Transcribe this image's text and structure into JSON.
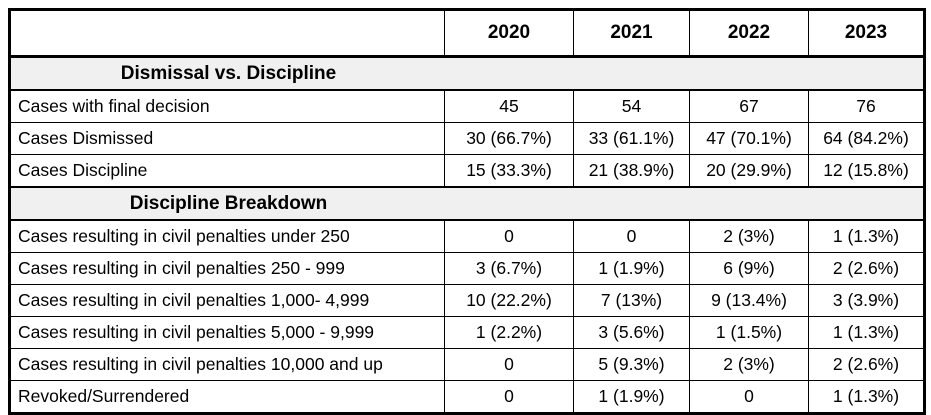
{
  "chart_data": {
    "type": "table",
    "column_headers": [
      "",
      "2020",
      "2021",
      "2022",
      "2023"
    ],
    "sections": [
      {
        "title": "Dismissal vs. Discipline",
        "rows": [
          {
            "label": "Cases with final decision",
            "values": [
              "45",
              "54",
              "67",
              "76"
            ]
          },
          {
            "label": "Cases Dismissed",
            "values": [
              "30 (66.7%)",
              "33 (61.1%)",
              "47 (70.1%)",
              "64 (84.2%)"
            ]
          },
          {
            "label": "Cases Discipline",
            "values": [
              "15 (33.3%)",
              "21 (38.9%)",
              "20 (29.9%)",
              "12 (15.8%)"
            ]
          }
        ]
      },
      {
        "title": "Discipline Breakdown",
        "rows": [
          {
            "label": "Cases resulting in civil penalties under 250",
            "values": [
              "0",
              "0",
              "2 (3%)",
              "1 (1.3%)"
            ]
          },
          {
            "label": "Cases resulting in civil penalties 250 - 999",
            "values": [
              "3 (6.7%)",
              "1 (1.9%)",
              "6 (9%)",
              "2 (2.6%)"
            ]
          },
          {
            "label": "Cases resulting in civil penalties 1,000- 4,999",
            "values": [
              "10 (22.2%)",
              "7 (13%)",
              "9 (13.4%)",
              "3 (3.9%)"
            ]
          },
          {
            "label": "Cases resulting in civil penalties 5,000 - 9,999",
            "values": [
              "1 (2.2%)",
              "3 (5.6%)",
              "1 (1.5%)",
              "1 (1.3%)"
            ]
          },
          {
            "label": "Cases resulting in civil penalties 10,000 and up",
            "values": [
              "0",
              "5 (9.3%)",
              "2 (3%)",
              "2 (2.6%)"
            ]
          },
          {
            "label": "Revoked/Surrendered",
            "values": [
              "0",
              "1 (1.9%)",
              "0",
              "1 (1.3%)"
            ]
          }
        ]
      }
    ],
    "layout": {
      "section_row_background": "#f0f0f0",
      "border_color": "#000000",
      "text_color": "#000000",
      "page_background": "#ffffff"
    }
  }
}
